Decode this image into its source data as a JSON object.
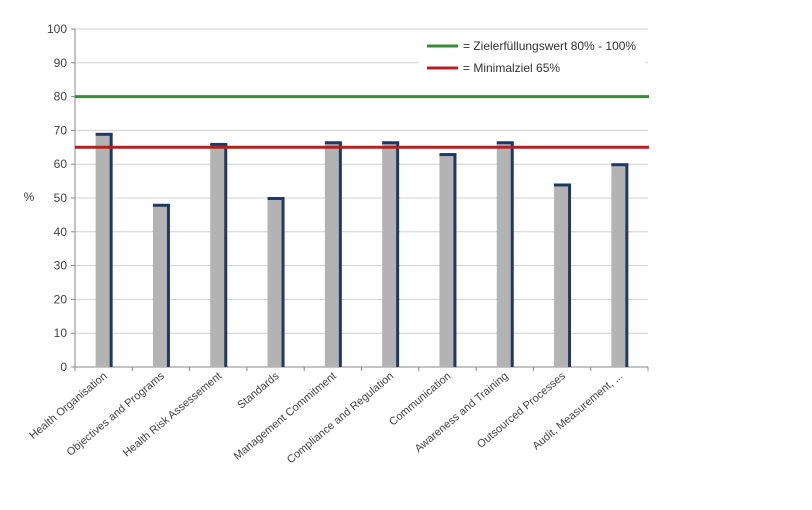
{
  "chart_data": {
    "type": "bar",
    "title": "",
    "xlabel": "",
    "ylabel": "%",
    "ylim": [
      0,
      100
    ],
    "yticks": [
      0,
      10,
      20,
      30,
      40,
      50,
      60,
      70,
      80,
      90,
      100
    ],
    "grid": true,
    "categories": [
      "Health Organisation",
      "Objectives and Programs",
      "Health Risk Assessement",
      "Standards",
      "Management Commitment",
      "Compliance and Regulation",
      "Communication",
      "Awareness and Training",
      "Outsourced Processes",
      "Audit, Measurement, ..."
    ],
    "values": [
      69,
      48,
      66,
      50,
      66.5,
      66.5,
      63,
      66.5,
      54,
      60
    ],
    "reference_lines": [
      {
        "name": "= Zielerfüllungswert 80% - 100%",
        "value": 80,
        "color": "#3a8c3a"
      },
      {
        "name": "= Minimalziel 65%",
        "value": 65,
        "color": "#b22222"
      }
    ],
    "legend_position": "top-right",
    "colors": {
      "bar_fill": "#b3b3b3",
      "bar_edge": "#1f3864",
      "grid": "#d0d0d0",
      "axis": "#888888"
    }
  }
}
